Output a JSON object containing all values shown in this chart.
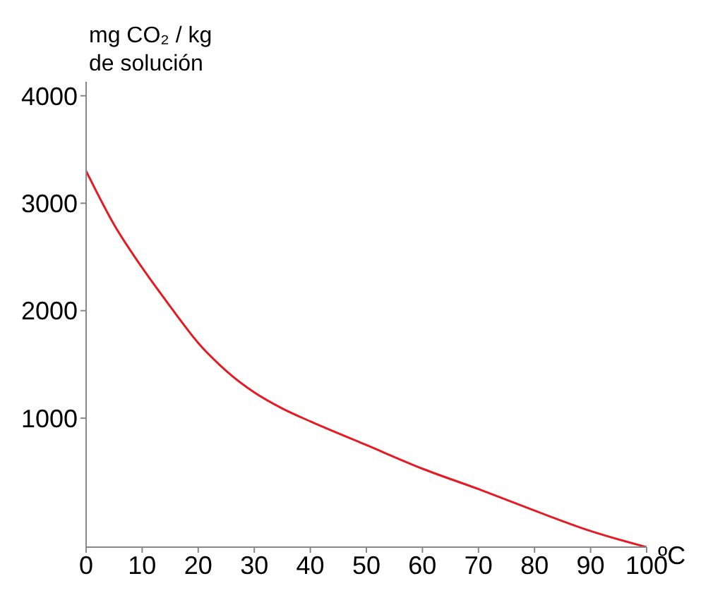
{
  "chart_data": {
    "type": "line",
    "ylabel": "mg CO₂ / kg\nde solución",
    "xlabel": "ºC",
    "x": [
      0,
      5,
      10,
      15,
      20,
      25,
      30,
      35,
      40,
      50,
      60,
      70,
      80,
      90,
      100
    ],
    "series": [
      {
        "color": "#e31b23",
        "values": [
          3300,
          2800,
          2400,
          2040,
          1700,
          1440,
          1240,
          1090,
          970,
          750,
          530,
          340,
          140,
          -50,
          -200
        ]
      }
    ],
    "xlim": [
      0,
      100
    ],
    "xticks": [
      0,
      10,
      20,
      30,
      40,
      50,
      60,
      70,
      80,
      90,
      100
    ],
    "ylim": [
      -200,
      4130
    ],
    "yticks": [
      1000,
      2000,
      3000,
      4000
    ],
    "grid": false,
    "legend": false,
    "marker": "none",
    "line_style": "solid"
  }
}
